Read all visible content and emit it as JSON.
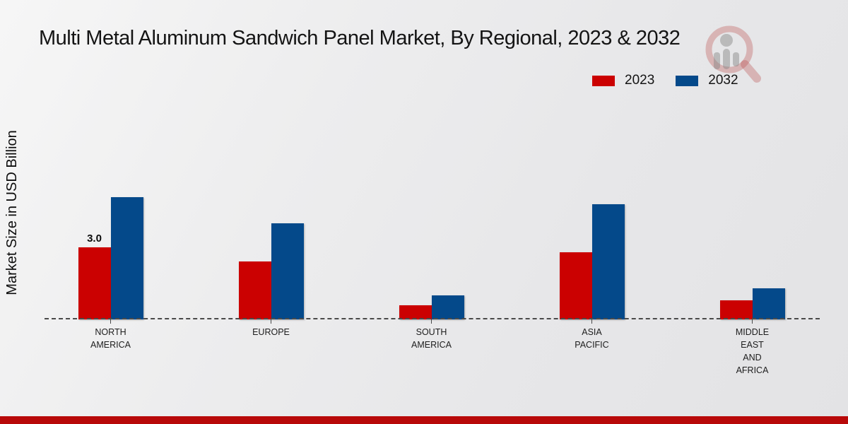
{
  "header": {
    "title": "Multi Metal Aluminum Sandwich Panel Market, By Regional, 2023 & 2032"
  },
  "axes": {
    "ylabel": "Market Size in USD Billion"
  },
  "legend": {
    "items": [
      {
        "label": "2023"
      },
      {
        "label": "2032"
      }
    ]
  },
  "watermark_icon": "magnifier-person-logo-watermark",
  "theme": {
    "series_2023_color": "#cb0101",
    "series_2032_color": "#04498a",
    "footer_strip_color": "#b80909",
    "watermark_red": "#c05050",
    "watermark_gray": "#8e8e8e"
  },
  "chart_data": {
    "type": "bar",
    "title": "Multi Metal Aluminum Sandwich Panel Market, By Regional, 2023 & 2032",
    "xlabel": "",
    "ylabel": "Market Size in USD Billion",
    "ylim": [
      0,
      5.5
    ],
    "grid": false,
    "legend_position": "top-right",
    "baseline_style": "dashed",
    "categories": [
      "NORTH AMERICA",
      "EUROPE",
      "SOUTH AMERICA",
      "ASIA PACIFIC",
      "MIDDLE EAST AND AFRICA"
    ],
    "series": [
      {
        "name": "2023",
        "color": "#cb0101",
        "values": [
          3.0,
          2.4,
          0.6,
          2.8,
          0.8
        ]
      },
      {
        "name": "2032",
        "color": "#04498a",
        "values": [
          5.1,
          4.0,
          1.0,
          4.8,
          1.3
        ]
      }
    ],
    "annotations": [
      {
        "series": "2023",
        "category": "NORTH AMERICA",
        "label": "3.0"
      }
    ]
  }
}
